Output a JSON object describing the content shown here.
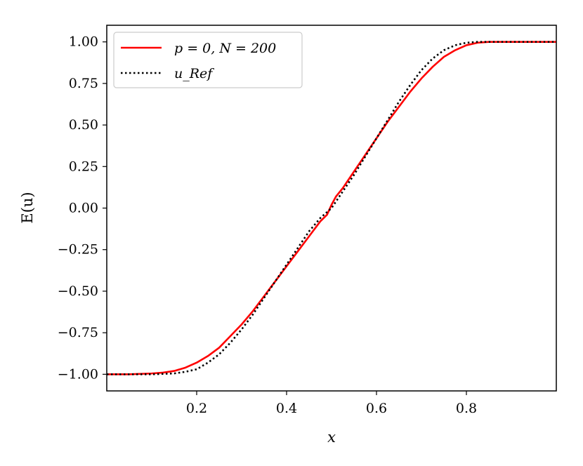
{
  "chart_data": {
    "type": "line",
    "xlabel": "x",
    "ylabel": "E(u)",
    "xlim": [
      0.0,
      1.0
    ],
    "ylim": [
      -1.1,
      1.1
    ],
    "xticks": [
      "0.2",
      "0.4",
      "0.6",
      "0.8"
    ],
    "yticks": [
      "1.00",
      "0.75",
      "0.50",
      "0.25",
      "0.00",
      "−0.25",
      "−0.50",
      "−0.75",
      "−1.00"
    ],
    "grid": false,
    "legend_position": "top-left",
    "series": [
      {
        "name": "p = 0, N = 200",
        "color": "#ff0000",
        "style": "solid",
        "x": [
          0.0,
          0.05,
          0.1,
          0.125,
          0.15,
          0.175,
          0.2,
          0.225,
          0.25,
          0.275,
          0.3,
          0.325,
          0.35,
          0.375,
          0.4,
          0.425,
          0.45,
          0.475,
          0.49,
          0.5,
          0.51,
          0.525,
          0.55,
          0.575,
          0.6,
          0.625,
          0.65,
          0.675,
          0.7,
          0.725,
          0.75,
          0.775,
          0.8,
          0.825,
          0.85,
          0.875,
          0.9,
          0.95,
          1.0
        ],
        "y": [
          -1.0,
          -1.0,
          -0.995,
          -0.99,
          -0.98,
          -0.96,
          -0.93,
          -0.89,
          -0.84,
          -0.77,
          -0.7,
          -0.62,
          -0.53,
          -0.44,
          -0.35,
          -0.26,
          -0.17,
          -0.08,
          -0.04,
          0.02,
          0.07,
          0.12,
          0.22,
          0.32,
          0.42,
          0.52,
          0.61,
          0.7,
          0.78,
          0.85,
          0.91,
          0.95,
          0.98,
          0.995,
          1.0,
          1.0,
          1.0,
          1.0,
          1.0
        ]
      },
      {
        "name": "u_Ref",
        "color": "#000000",
        "style": "dotted",
        "x": [
          0.0,
          0.05,
          0.1,
          0.15,
          0.175,
          0.2,
          0.225,
          0.25,
          0.275,
          0.3,
          0.325,
          0.35,
          0.375,
          0.4,
          0.425,
          0.45,
          0.475,
          0.5,
          0.525,
          0.55,
          0.575,
          0.6,
          0.625,
          0.65,
          0.675,
          0.7,
          0.725,
          0.75,
          0.775,
          0.8,
          0.825,
          0.85,
          0.875,
          0.9,
          1.0
        ],
        "y": [
          -1.0,
          -1.0,
          -1.0,
          -0.995,
          -0.985,
          -0.97,
          -0.93,
          -0.88,
          -0.81,
          -0.73,
          -0.64,
          -0.54,
          -0.44,
          -0.34,
          -0.24,
          -0.14,
          -0.06,
          0.0,
          0.1,
          0.2,
          0.31,
          0.42,
          0.53,
          0.64,
          0.74,
          0.83,
          0.9,
          0.95,
          0.98,
          0.995,
          1.0,
          1.0,
          1.0,
          1.0,
          1.0
        ]
      }
    ]
  }
}
